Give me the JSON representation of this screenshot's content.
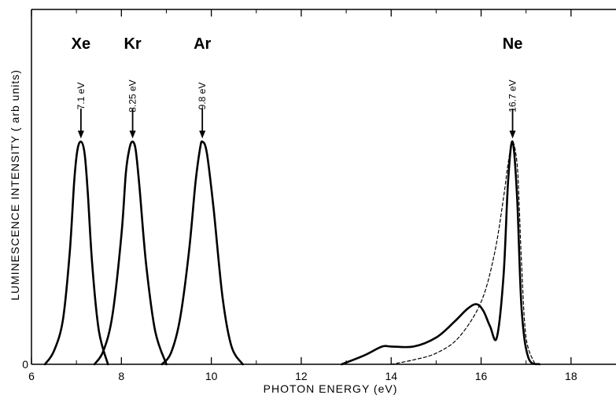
{
  "chart_data": {
    "type": "line",
    "title": "",
    "xlabel": "PHOTON ENERGY  (eV)",
    "ylabel": "LUMINESCENCE INTENSITY ( arb units)",
    "xlim": [
      6,
      19
    ],
    "ylim": [
      0,
      1.25
    ],
    "xticks": [
      6,
      8,
      10,
      12,
      14,
      16,
      18
    ],
    "xtick_labels": [
      "6",
      "8",
      "10",
      "12",
      "14",
      "16",
      "18"
    ],
    "yticks": [
      0
    ],
    "ytick_labels": [
      "0"
    ],
    "grid": false,
    "legend": "none",
    "series": [
      {
        "style": "solid",
        "x": [
          6.3,
          6.5,
          6.7,
          6.85,
          6.95,
          7.02,
          7.1,
          7.18,
          7.25,
          7.35,
          7.5,
          7.7
        ],
        "values": [
          0.0,
          0.06,
          0.2,
          0.5,
          0.82,
          0.96,
          1.0,
          0.95,
          0.78,
          0.45,
          0.15,
          0.0
        ]
      },
      {
        "style": "solid",
        "x": [
          7.4,
          7.6,
          7.8,
          8.0,
          8.1,
          8.18,
          8.25,
          8.32,
          8.4,
          8.55,
          8.75,
          9.0
        ],
        "values": [
          0.0,
          0.06,
          0.22,
          0.58,
          0.86,
          0.97,
          1.0,
          0.96,
          0.8,
          0.45,
          0.15,
          0.0
        ]
      },
      {
        "style": "solid",
        "x": [
          8.9,
          9.1,
          9.3,
          9.5,
          9.65,
          9.75,
          9.8,
          9.9,
          10.05,
          10.25,
          10.45,
          10.7
        ],
        "values": [
          0.0,
          0.05,
          0.2,
          0.5,
          0.82,
          0.97,
          1.0,
          0.95,
          0.7,
          0.3,
          0.08,
          0.0
        ]
      },
      {
        "style": "solid",
        "x": [
          12.9,
          13.4,
          13.8,
          14.0,
          14.5,
          15.0,
          15.4,
          15.7,
          15.9,
          16.05,
          16.2,
          16.35,
          16.5,
          16.6,
          16.7,
          16.8,
          16.9,
          17.05,
          17.3
        ],
        "values": [
          0.0,
          0.04,
          0.08,
          0.08,
          0.08,
          0.12,
          0.19,
          0.25,
          0.27,
          0.24,
          0.17,
          0.12,
          0.4,
          0.82,
          1.0,
          0.75,
          0.25,
          0.03,
          0.0
        ]
      },
      {
        "style": "dashed",
        "x": [
          14.0,
          14.5,
          15.0,
          15.5,
          16.0,
          16.3,
          16.5,
          16.6,
          16.7,
          16.8,
          16.85,
          16.9,
          17.0,
          17.2
        ],
        "values": [
          0.0,
          0.02,
          0.05,
          0.12,
          0.28,
          0.5,
          0.75,
          0.9,
          1.0,
          0.9,
          0.7,
          0.45,
          0.12,
          0.0
        ]
      }
    ],
    "annotations": [
      {
        "label": "Xe",
        "energy_label": "7.1 eV",
        "x": 7.1,
        "y": 1.0
      },
      {
        "label": "Kr",
        "energy_label": "8.25 eV",
        "x": 8.25,
        "y": 1.0
      },
      {
        "label": "Ar",
        "energy_label": "9.8 eV",
        "x": 9.8,
        "y": 1.0
      },
      {
        "label": "Ne",
        "energy_label": "16.7 eV",
        "x": 16.7,
        "y": 1.0
      }
    ]
  }
}
